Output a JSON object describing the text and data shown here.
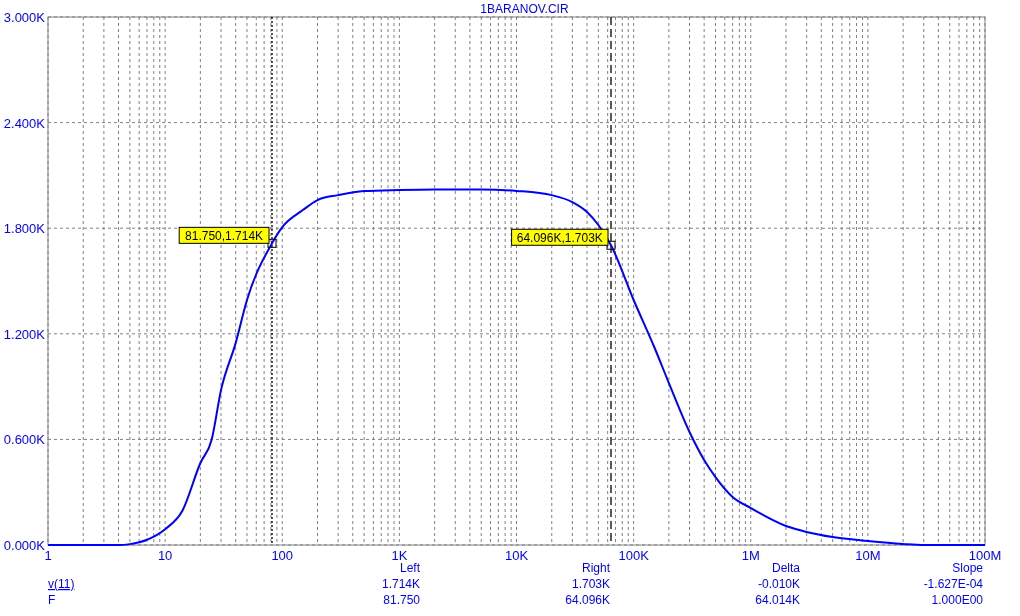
{
  "chart_data": {
    "type": "line",
    "title": "1BARANOV.CIR",
    "x": [
      1,
      2,
      3,
      4,
      5,
      7,
      10,
      14,
      20,
      25,
      30,
      40,
      50,
      81.75,
      100,
      150,
      200,
      300,
      500,
      1000,
      2000,
      5000,
      10000,
      20000,
      30000,
      40000,
      50000,
      64096,
      100000,
      150000,
      200000,
      300000,
      400000,
      500000,
      700000,
      1000000,
      2000000,
      3000000,
      5000000,
      10000000,
      20000000,
      30000000,
      50000000,
      100000000
    ],
    "series": [
      {
        "color": "#0000ff",
        "values": [
          0,
          0,
          0,
          0,
          5,
          30,
          90,
          193,
          466,
          600,
          880,
          1147,
          1392,
          1714,
          1806,
          1903,
          1960,
          1988,
          2011,
          2017,
          2020,
          2020,
          2012,
          1988,
          1948,
          1892,
          1818,
          1703,
          1392,
          1125,
          920,
          642,
          483,
          386,
          273,
          210,
          108,
          74,
          45,
          23,
          6,
          0,
          0,
          0
        ]
      }
    ],
    "log": "x",
    "marker": "none",
    "line_style": "solid",
    "grid": true,
    "xlim": [
      1,
      100000000
    ],
    "xticks": [
      {
        "value": 1,
        "label": "1"
      },
      {
        "value": 10,
        "label": "10"
      },
      {
        "value": 100,
        "label": "100"
      },
      {
        "value": 1000,
        "label": "1K"
      },
      {
        "value": 10000,
        "label": "10K"
      },
      {
        "value": 100000,
        "label": "100K"
      },
      {
        "value": 1000000,
        "label": "1M"
      },
      {
        "value": 10000000,
        "label": "10M"
      },
      {
        "value": 100000000,
        "label": "100M"
      }
    ],
    "ylim": [
      0,
      3000
    ],
    "yticks": [
      {
        "value": 0,
        "label": "0.000K"
      },
      {
        "value": 600,
        "label": "0.600K"
      },
      {
        "value": 1200,
        "label": "1.200K"
      },
      {
        "value": 1800,
        "label": "1.800K"
      },
      {
        "value": 2400,
        "label": "2.400K"
      },
      {
        "value": 3000,
        "label": "3.000K"
      }
    ],
    "ref_lines": [
      {
        "axis": "x",
        "value": 81.75,
        "color": "#000000",
        "line_style": "dotted"
      },
      {
        "axis": "x",
        "value": 64096,
        "color": "#000000",
        "line_style": "dashed"
      }
    ],
    "annotations": [
      {
        "text": "81.750,1.714K",
        "x": 81.75,
        "y": 1714
      },
      {
        "text": "64.096K,1.703K",
        "x": 64096,
        "y": 1703
      },
      "Left",
      "Right",
      "Delta",
      "Slope",
      "v(11)",
      "1.714K",
      "1.703K",
      "-0.010K",
      "-1.627E-04",
      "F",
      "81.750",
      "64.096K",
      "64.014K",
      "1.000E00"
    ]
  }
}
